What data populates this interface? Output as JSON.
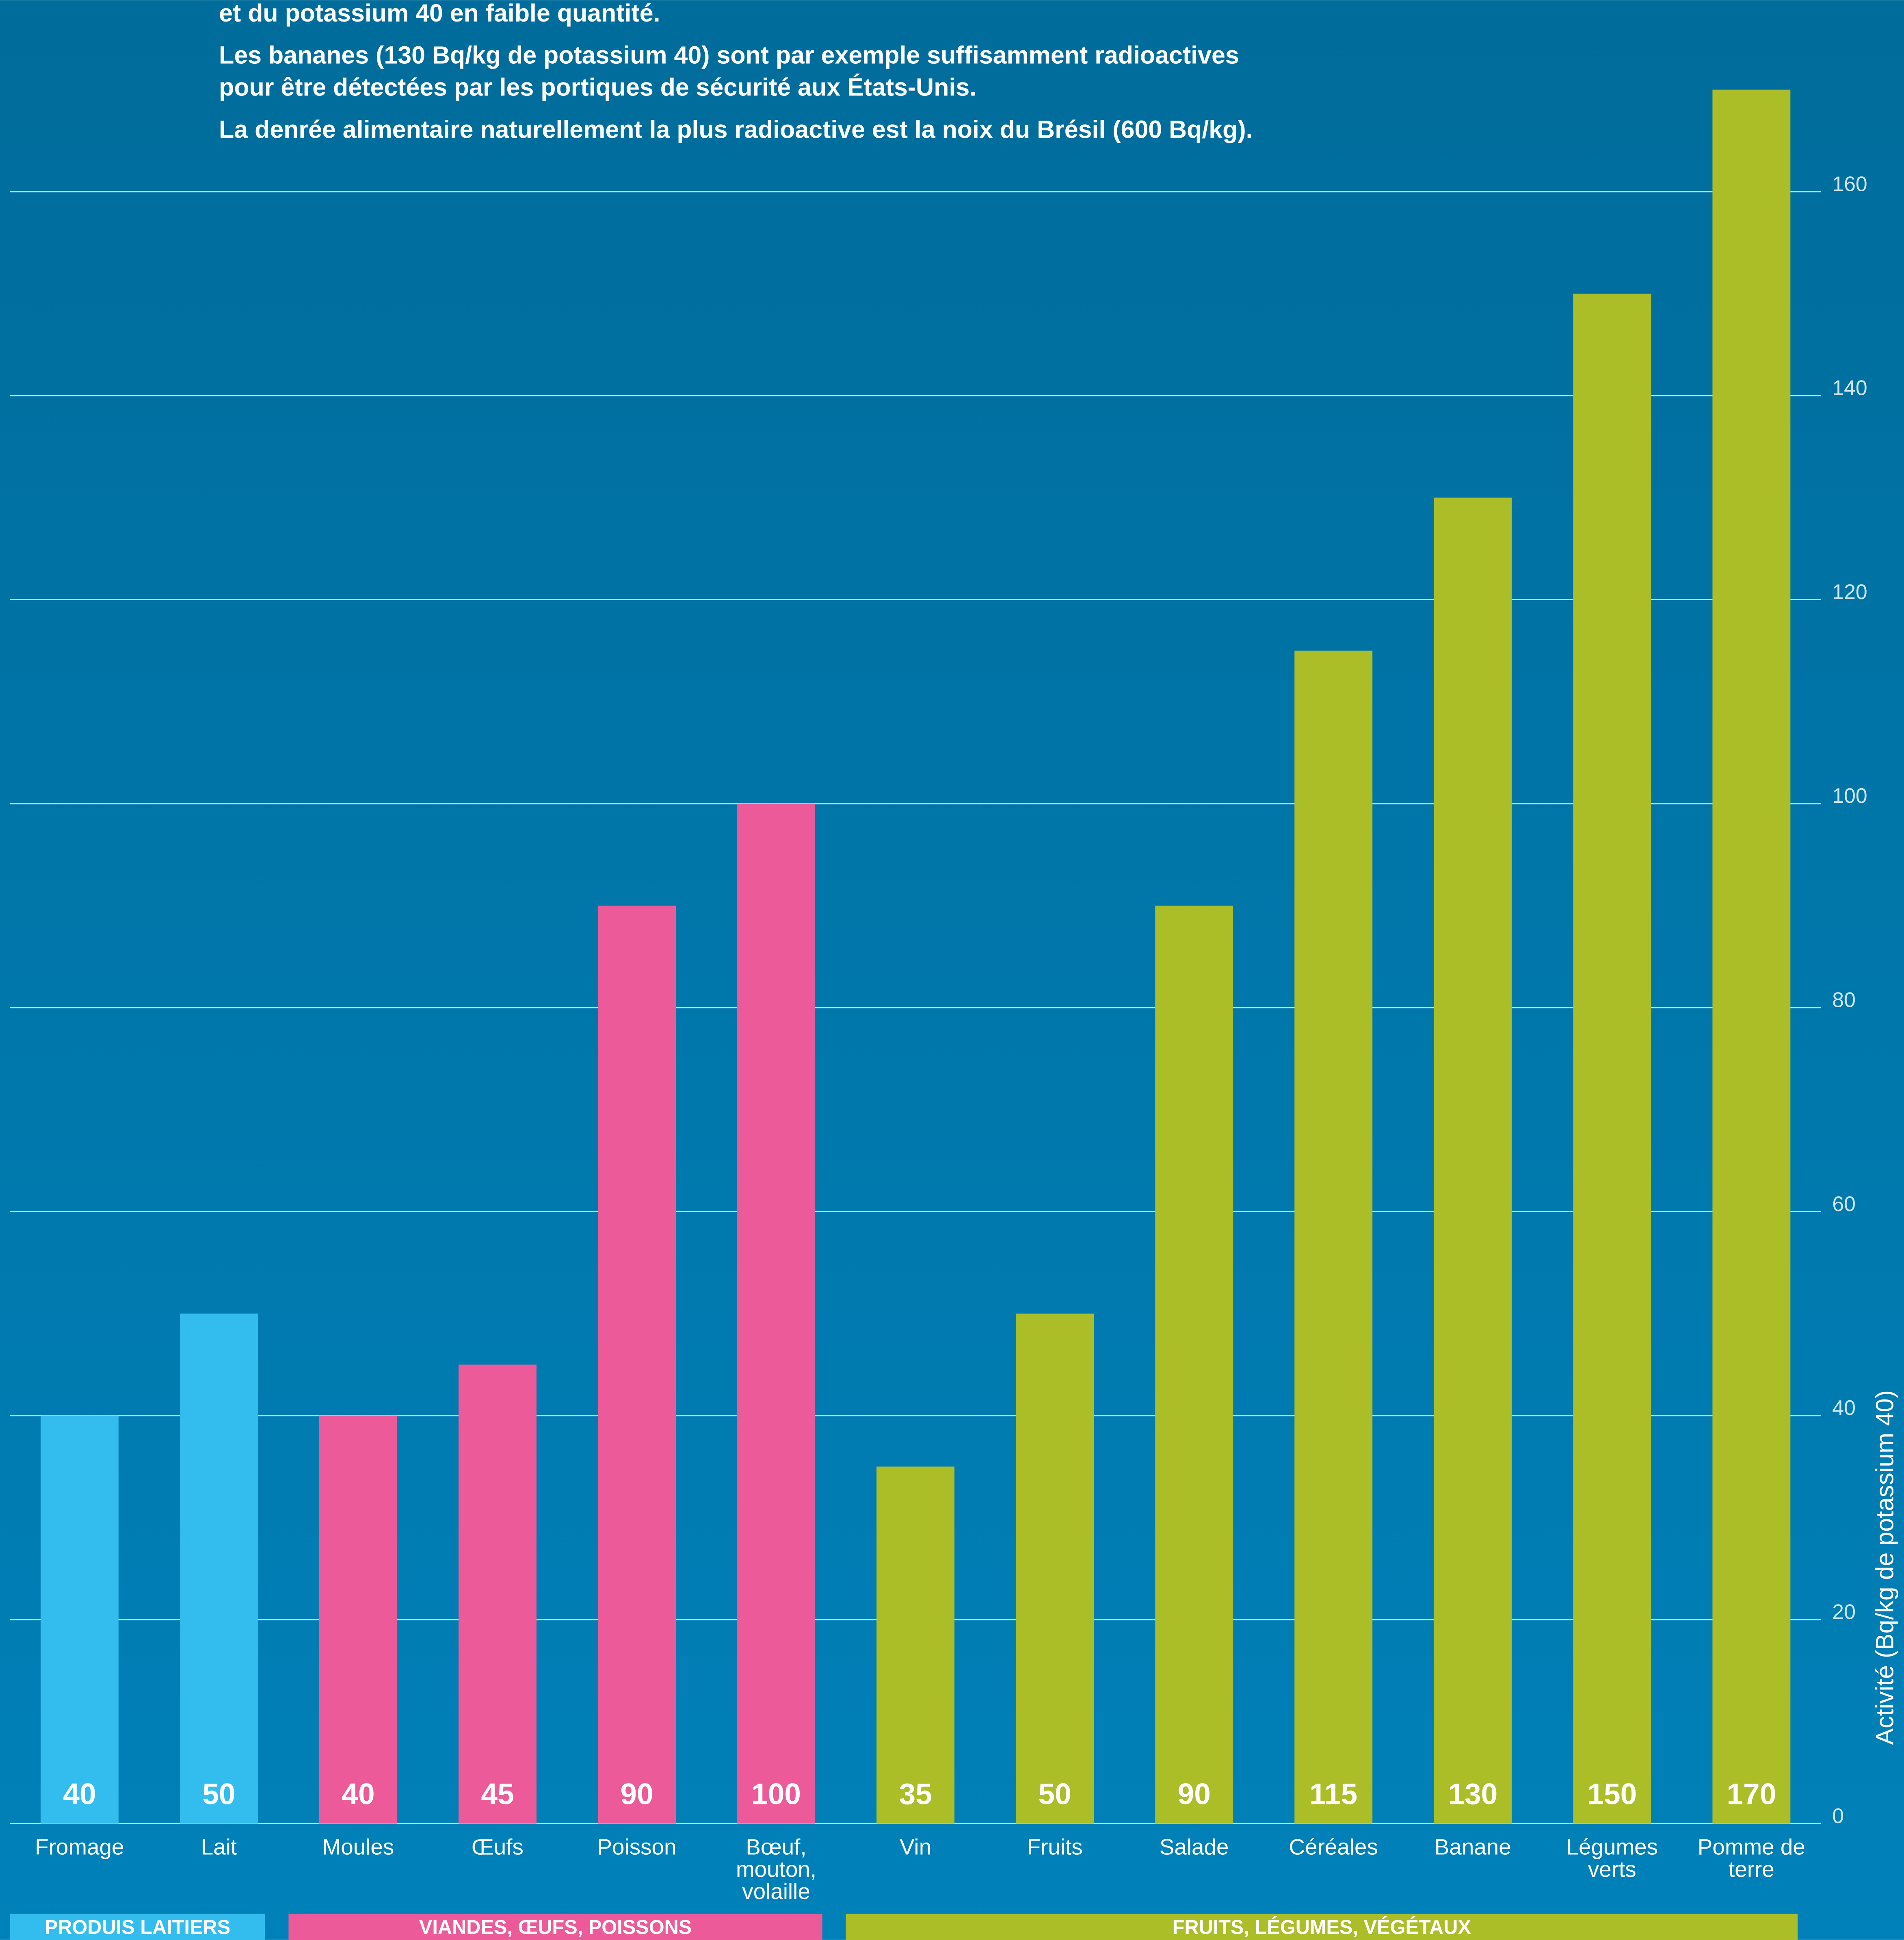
{
  "chart_data": {
    "type": "bar",
    "notes": [
      "et du potassium 40 en faible quantité.",
      "Les bananes (130 Bq/kg de potassium 40) sont par exemple suffisamment radioactives",
      "pour être détectées par les portiques de sécurité aux États-Unis.",
      "La denrée alimentaire naturellement la plus radioactive est la noix du Brésil (600 Bq/kg)."
    ],
    "y_label": "Activité (Bq/kg de potassium 40)",
    "categories": [
      "Fromage",
      "Lait",
      "Moules",
      "Œufs",
      "Poisson",
      "Bœuf, mouton, volaille",
      "Vin",
      "Fruits",
      "Salade",
      "Céréales",
      "Banane",
      "Légumes verts",
      "Pomme de terre"
    ],
    "values": [
      40,
      50,
      40,
      45,
      90,
      100,
      35,
      50,
      90,
      115,
      130,
      150,
      170
    ],
    "colors": [
      "#33bdef",
      "#33bdef",
      "#ec5a99",
      "#ec5a99",
      "#ec5a99",
      "#ec5a99",
      "#abbd27",
      "#abbd27",
      "#abbd27",
      "#abbd27",
      "#abbd27",
      "#abbd27",
      "#abbd27"
    ],
    "groups": [
      {
        "label": "PRODUIS LAITIERS",
        "color": "#33bdef"
      },
      {
        "label": "VIANDES, ŒUFS, POISSONS",
        "color": "#ec5a99"
      },
      {
        "label": "FRUITS, LÉGUMES, VÉGÉTAUX",
        "color": "#abbd27"
      }
    ],
    "ylim": [
      0,
      180
    ],
    "yticks": [
      0,
      20,
      40,
      60,
      80,
      100,
      120,
      140,
      160
    ],
    "grid": true
  }
}
